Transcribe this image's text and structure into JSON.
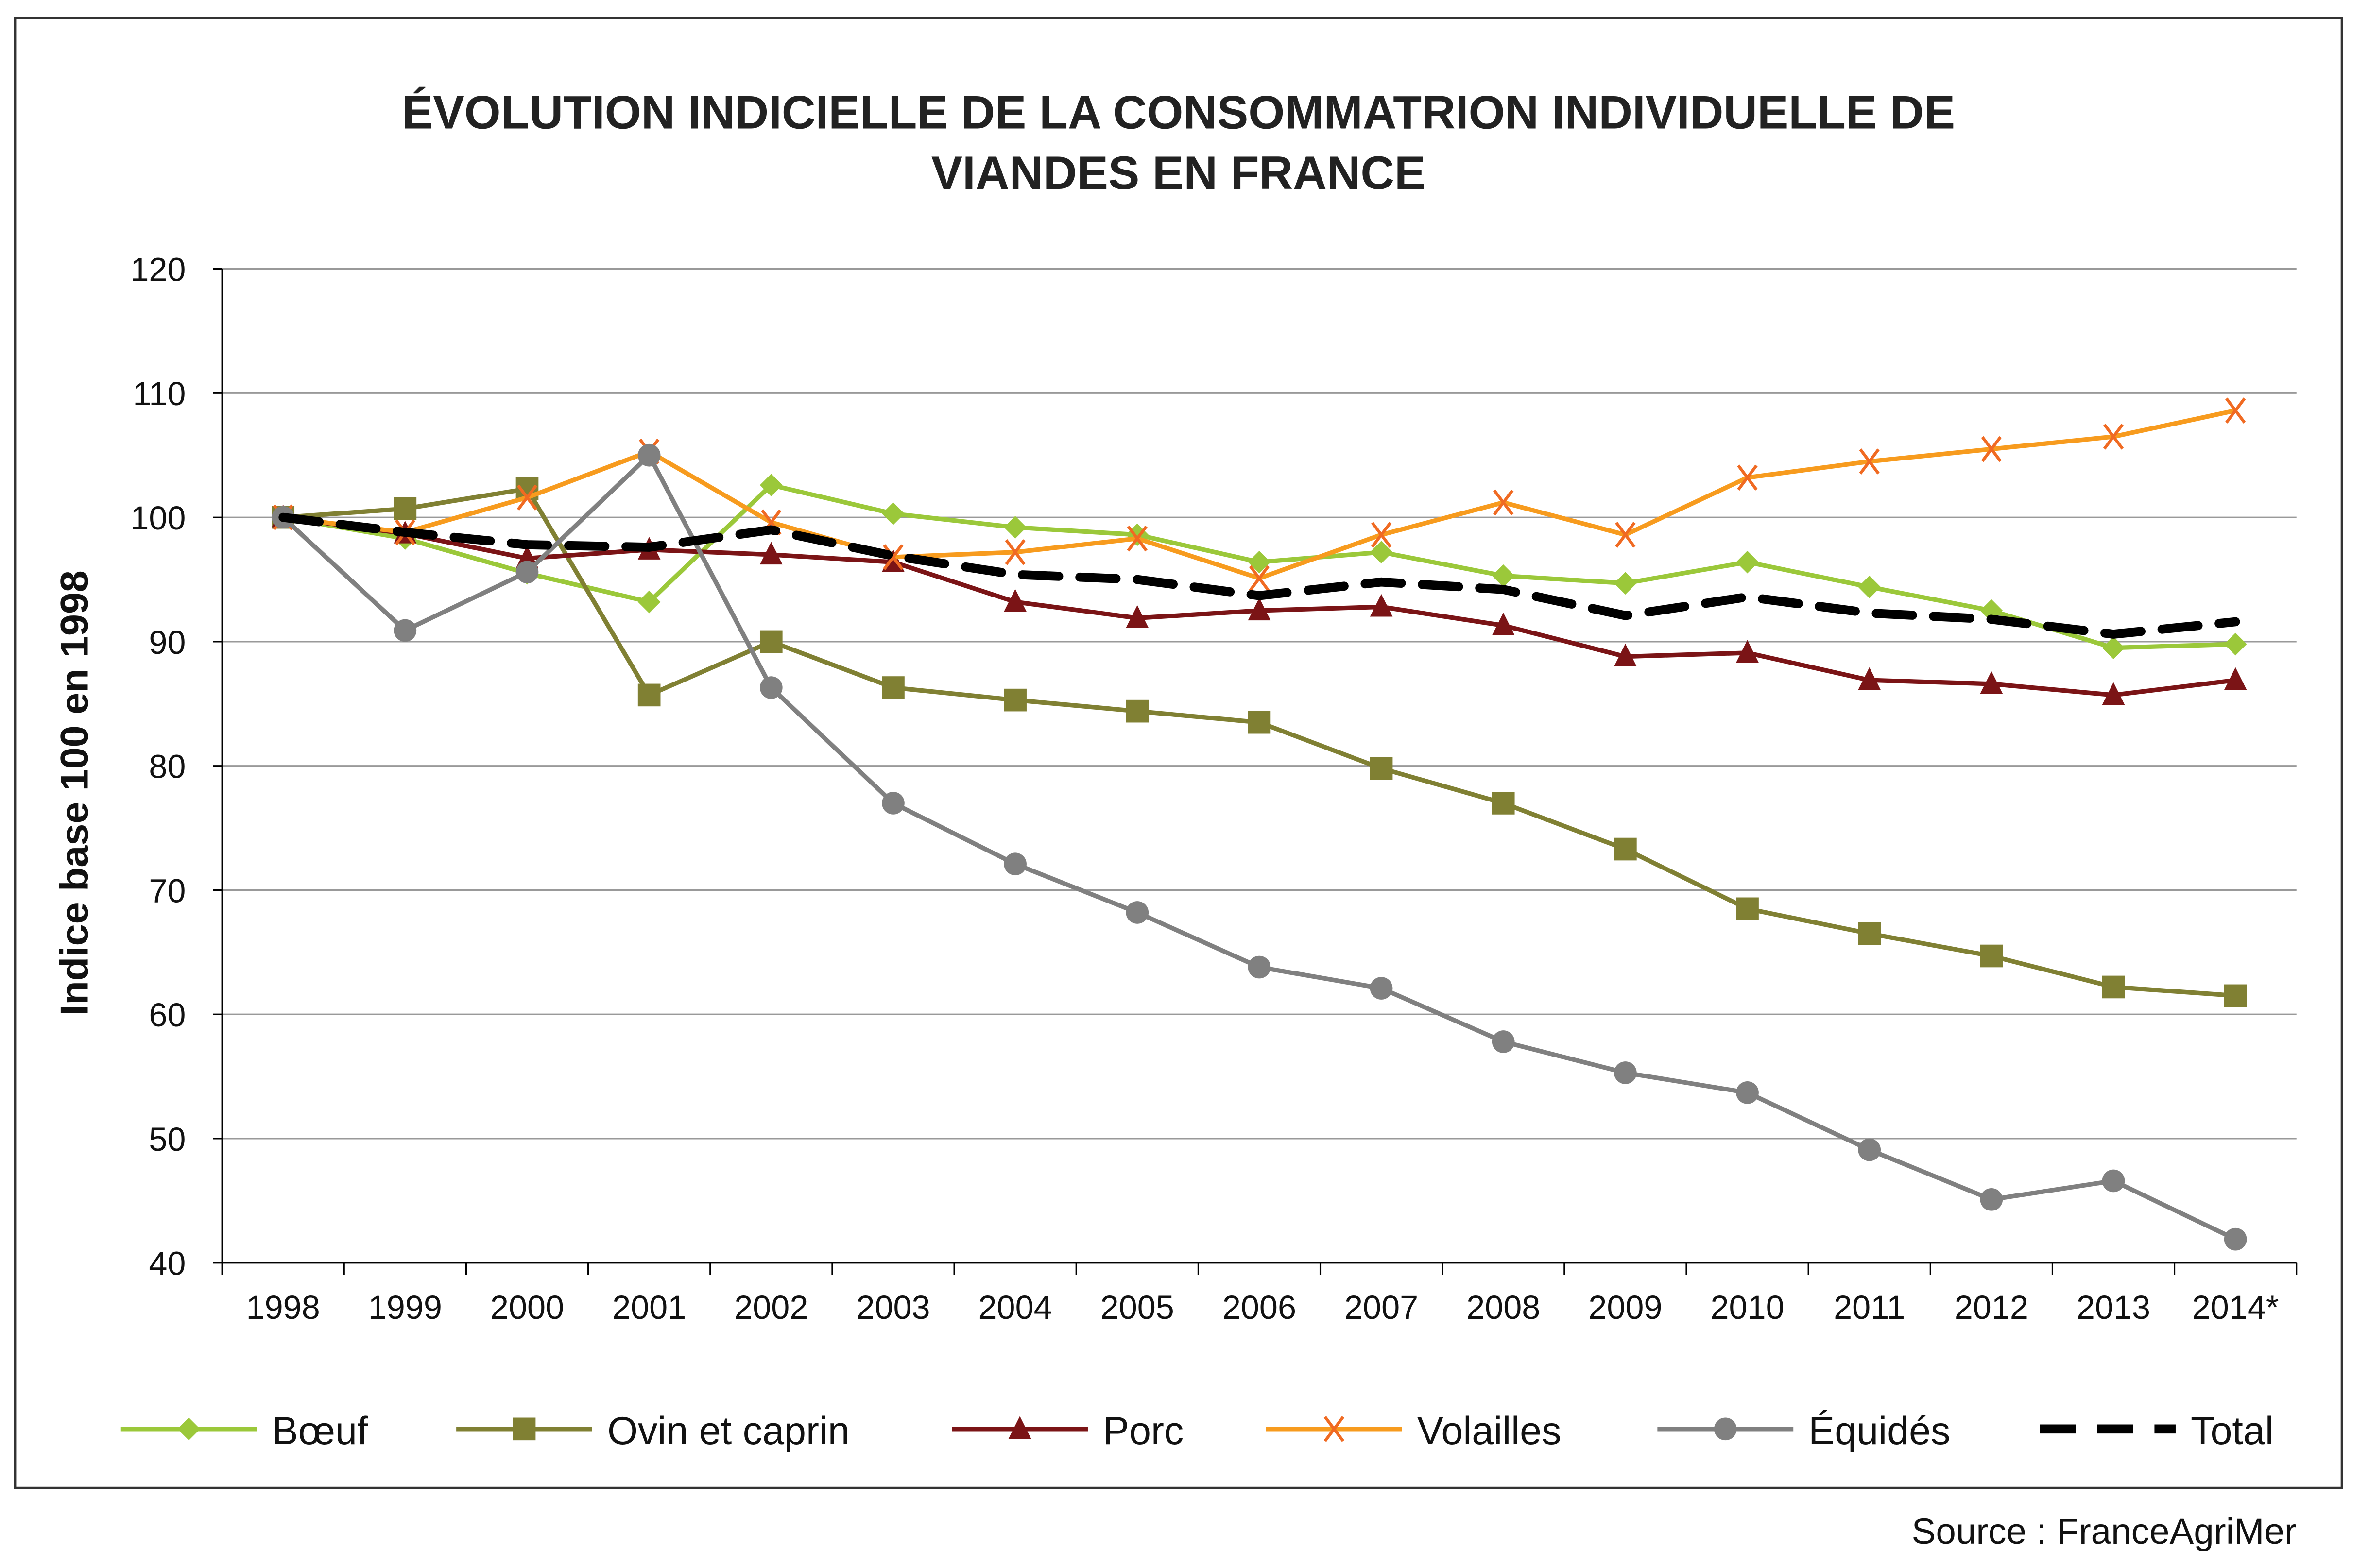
{
  "chart_data": {
    "type": "line",
    "title_line1": "ÉVOLUTION INDICIELLE DE LA CONSOMMATRION INDIVIDUELLE DE",
    "title_line2": "VIANDES EN FRANCE",
    "xlabel": "",
    "ylabel": "Indice base 100 en 1998",
    "ylim": [
      40,
      120
    ],
    "yticks": [
      40,
      50,
      60,
      70,
      80,
      90,
      100,
      110,
      120
    ],
    "grid": true,
    "legend_position": "bottom",
    "categories": [
      "1998",
      "1999",
      "2000",
      "2001",
      "2002",
      "2003",
      "2004",
      "2005",
      "2006",
      "2007",
      "2008",
      "2009",
      "2010",
      "2011",
      "2012",
      "2013",
      "2014*"
    ],
    "series": [
      {
        "name": "Bœuf",
        "color": "#9BC83A",
        "marker": "diamond",
        "values": [
          100,
          98.3,
          95.5,
          93.2,
          102.6,
          100.3,
          99.2,
          98.6,
          96.4,
          97.2,
          95.3,
          94.7,
          96.4,
          94.4,
          92.5,
          89.5,
          89.8
        ]
      },
      {
        "name": "Ovin et caprin",
        "color": "#808033",
        "marker": "square",
        "values": [
          100,
          100.7,
          102.3,
          85.7,
          90.0,
          86.3,
          85.3,
          84.4,
          83.5,
          79.8,
          77.0,
          73.3,
          68.5,
          66.5,
          64.7,
          62.2,
          61.5
        ]
      },
      {
        "name": "Porc",
        "color": "#7B1416",
        "marker": "triangle",
        "values": [
          100,
          98.7,
          96.7,
          97.4,
          97.0,
          96.4,
          93.2,
          91.9,
          92.5,
          92.8,
          91.3,
          88.8,
          89.1,
          86.9,
          86.6,
          85.7,
          86.9
        ]
      },
      {
        "name": "Volailles",
        "color": "#F79B1E",
        "marker_color": "#F06A22",
        "marker": "x",
        "values": [
          100,
          98.8,
          101.6,
          105.3,
          99.6,
          96.8,
          97.2,
          98.3,
          95.1,
          98.6,
          101.2,
          98.6,
          103.2,
          104.5,
          105.5,
          106.5,
          108.6
        ]
      },
      {
        "name": "Équidés",
        "color": "#808080",
        "marker": "circle",
        "values": [
          100,
          90.9,
          95.6,
          105.0,
          86.3,
          77.0,
          72.1,
          68.2,
          63.8,
          62.1,
          57.8,
          55.3,
          53.7,
          49.1,
          45.1,
          46.6,
          41.9
        ]
      },
      {
        "name": "Total",
        "color": "#000000",
        "marker": "none",
        "dashed": true,
        "values": [
          100,
          98.8,
          97.8,
          97.6,
          99.0,
          96.9,
          95.4,
          95.0,
          93.7,
          94.8,
          94.2,
          92.1,
          93.6,
          92.3,
          91.8,
          90.6,
          91.6
        ]
      }
    ],
    "source": "Source : FranceAgriMer"
  }
}
